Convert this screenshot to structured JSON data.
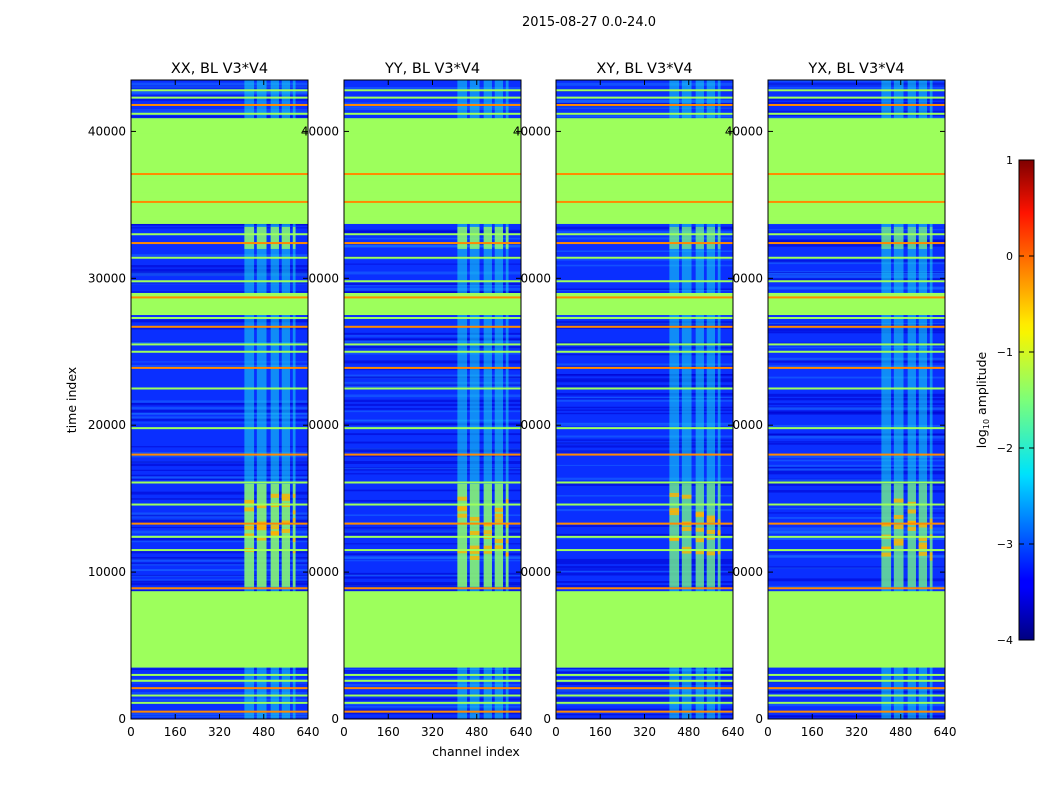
{
  "chart_data": {
    "type": "heatmap",
    "title": "2015-08-27 0.0-24.0",
    "xlabel": "channel index",
    "ylabel": "time index",
    "xlim": [
      0,
      640
    ],
    "ylim": [
      0,
      43500
    ],
    "x_ticks": [
      0,
      160,
      320,
      480,
      640
    ],
    "y_ticks": [
      0,
      10000,
      20000,
      30000,
      40000
    ],
    "y_tick_labels_shared": [
      "0",
      "0000",
      "0000",
      "0000",
      "40000"
    ],
    "panels": [
      {
        "title": "XX, BL V3*V4",
        "polarization": "XX"
      },
      {
        "title": "YY, BL V3*V4",
        "polarization": "YY"
      },
      {
        "title": "XY, BL V3*V4",
        "polarization": "XY"
      },
      {
        "title": "YX, BL V3*V4",
        "polarization": "YX"
      }
    ],
    "colorbar": {
      "label": "log10 amplitude",
      "min": -4,
      "max": 1,
      "ticks": [
        1,
        0,
        -1,
        -2,
        -3,
        -4
      ],
      "tick_labels": [
        "1",
        "0",
        "−1",
        "−2",
        "−3",
        "−4"
      ],
      "colormap": "jet"
    },
    "flagged_time_blocks": [
      {
        "start": 3500,
        "end": 8700,
        "level": -1.0
      },
      {
        "start": 33700,
        "end": 40900,
        "level": -1.0
      },
      {
        "start": 27500,
        "end": 29000,
        "level": -1.0
      }
    ],
    "flag_lines": [
      500,
      1100,
      1600,
      2100,
      2600,
      3000,
      8900,
      11500,
      12400,
      13300,
      14600,
      16100,
      18000,
      19800,
      22500,
      23900,
      25000,
      25500,
      26700,
      27300,
      28000,
      28700,
      29800,
      31400,
      32400,
      33000,
      34300,
      35200,
      35900,
      36600,
      37100,
      39900,
      41200,
      41800,
      42300,
      42800
    ],
    "rfi_channel_bands": [
      [
        410,
        445
      ],
      [
        455,
        490
      ],
      [
        505,
        535
      ],
      [
        545,
        575
      ],
      [
        585,
        595
      ]
    ],
    "strong_rfi_time_ranges": [
      [
        9000,
        16000
      ],
      [
        32000,
        33500
      ]
    ]
  }
}
